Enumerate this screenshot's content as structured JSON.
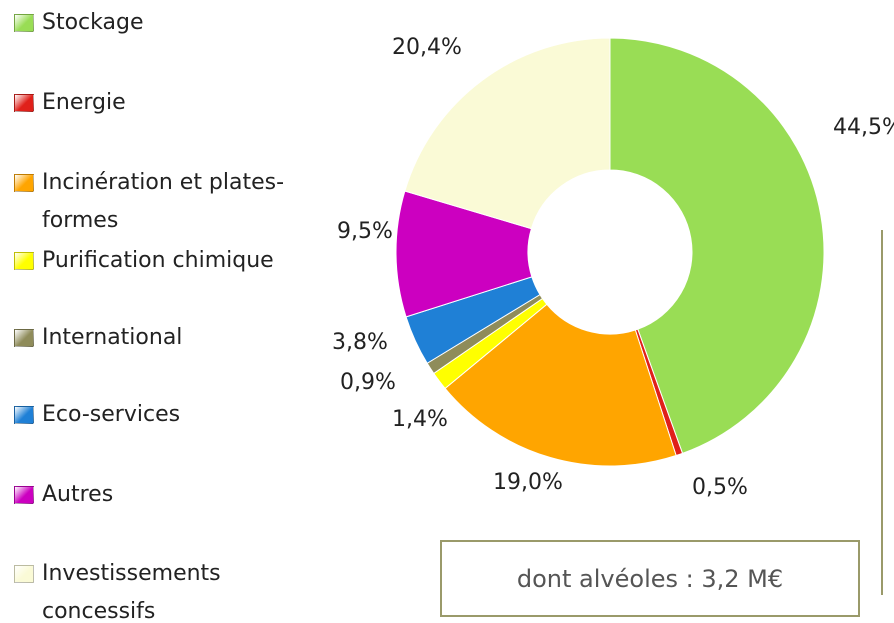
{
  "chart_data": {
    "type": "pie",
    "donut": true,
    "categories": [
      "Stockage",
      "Energie",
      "Incinération et plates-formes",
      "Purification chimique",
      "International",
      "Eco-services",
      "Autres",
      "Investissements concessifs"
    ],
    "values": [
      44.5,
      0.5,
      19.0,
      1.4,
      0.9,
      3.8,
      9.5,
      20.4
    ],
    "value_labels": [
      "44,5%",
      "0,5%",
      "19,0%",
      "1,4%",
      "0,9%",
      "3,8%",
      "9,5%",
      "20,4%"
    ],
    "colors": [
      "#99dd55",
      "#e0201a",
      "#ffa500",
      "#ffff00",
      "#8f8c5a",
      "#1f80d6",
      "#cc00c0",
      "#fafad6"
    ],
    "annotation": "dont alvéoles : 3,2 M€"
  }
}
